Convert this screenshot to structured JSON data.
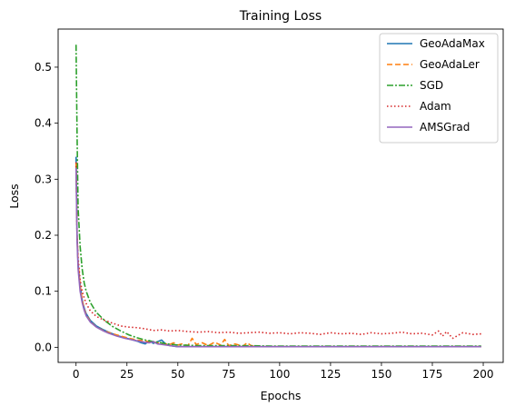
{
  "chart_data": {
    "type": "line",
    "title": "Training Loss",
    "xlabel": "Epochs",
    "ylabel": "Loss",
    "xlim": [
      -8.8,
      209.8
    ],
    "ylim": [
      -0.027,
      0.568
    ],
    "xticks": [
      0,
      25,
      50,
      75,
      100,
      125,
      150,
      175,
      200
    ],
    "xtick_labels": [
      "0",
      "25",
      "50",
      "75",
      "100",
      "125",
      "150",
      "175",
      "200"
    ],
    "yticks": [
      0.0,
      0.1,
      0.2,
      0.3,
      0.4,
      0.5
    ],
    "ytick_labels": [
      "0.0",
      "0.1",
      "0.2",
      "0.3",
      "0.4",
      "0.5"
    ],
    "grid": false,
    "legend_position": "top-right",
    "series": [
      {
        "name": "GeoAdaMax",
        "color": "#1f77b4",
        "dash": "solid",
        "x": [
          0,
          0.5,
          1,
          2,
          3,
          4,
          5,
          7,
          10,
          13,
          16,
          20,
          24,
          28,
          30,
          32,
          34,
          36,
          38,
          40,
          42,
          44,
          46,
          48,
          50,
          60,
          80,
          100,
          150,
          199
        ],
        "y": [
          0.34,
          0.2,
          0.15,
          0.11,
          0.085,
          0.07,
          0.06,
          0.048,
          0.038,
          0.032,
          0.027,
          0.021,
          0.017,
          0.013,
          0.011,
          0.008,
          0.006,
          0.012,
          0.007,
          0.01,
          0.013,
          0.006,
          0.003,
          0.002,
          0.001,
          0.001,
          0.001,
          0.001,
          0.001,
          0.001
        ]
      },
      {
        "name": "GeoAdaLer",
        "color": "#ff7f0e",
        "dash": "6,3",
        "x": [
          0,
          0.5,
          1,
          2,
          3,
          4,
          5,
          7,
          10,
          14,
          18,
          22,
          26,
          30,
          34,
          38,
          42,
          46,
          48,
          50,
          52,
          55,
          57,
          59,
          62,
          65,
          68,
          71,
          73,
          75,
          78,
          80,
          82,
          84,
          86,
          90,
          100,
          150,
          199
        ],
        "y": [
          0.33,
          0.2,
          0.15,
          0.11,
          0.085,
          0.068,
          0.058,
          0.046,
          0.036,
          0.029,
          0.024,
          0.02,
          0.016,
          0.013,
          0.011,
          0.009,
          0.007,
          0.005,
          0.008,
          0.004,
          0.006,
          0.003,
          0.016,
          0.005,
          0.008,
          0.003,
          0.009,
          0.004,
          0.014,
          0.003,
          0.006,
          0.004,
          0.002,
          0.008,
          0.003,
          0.001,
          0.001,
          0.001,
          0.001
        ]
      },
      {
        "name": "SGD",
        "color": "#2ca02c",
        "dash": "7,2,2,2",
        "x": [
          0,
          0.5,
          1,
          2,
          3,
          4,
          5,
          7,
          10,
          14,
          18,
          22,
          26,
          30,
          35,
          40,
          45,
          50,
          60,
          80,
          100,
          150,
          199
        ],
        "y": [
          0.54,
          0.38,
          0.25,
          0.18,
          0.14,
          0.115,
          0.1,
          0.08,
          0.062,
          0.048,
          0.037,
          0.029,
          0.022,
          0.017,
          0.012,
          0.009,
          0.006,
          0.004,
          0.003,
          0.003,
          0.002,
          0.002,
          0.002
        ]
      },
      {
        "name": "Adam",
        "color": "#d62728",
        "dash": "1.5,2.5",
        "x": [
          0,
          0.5,
          1,
          2,
          3,
          4,
          5,
          7,
          10,
          14,
          18,
          22,
          26,
          30,
          34,
          38,
          42,
          46,
          50,
          55,
          60,
          65,
          70,
          75,
          80,
          85,
          90,
          95,
          100,
          105,
          110,
          115,
          120,
          125,
          130,
          135,
          140,
          145,
          150,
          155,
          160,
          165,
          170,
          175,
          178,
          180,
          182,
          185,
          190,
          195,
          199
        ],
        "y": [
          0.33,
          0.2,
          0.16,
          0.12,
          0.1,
          0.088,
          0.078,
          0.065,
          0.055,
          0.048,
          0.043,
          0.038,
          0.036,
          0.035,
          0.033,
          0.03,
          0.031,
          0.029,
          0.03,
          0.028,
          0.027,
          0.028,
          0.026,
          0.027,
          0.025,
          0.026,
          0.027,
          0.025,
          0.026,
          0.024,
          0.026,
          0.025,
          0.023,
          0.026,
          0.024,
          0.025,
          0.023,
          0.026,
          0.024,
          0.025,
          0.027,
          0.024,
          0.025,
          0.022,
          0.029,
          0.02,
          0.028,
          0.016,
          0.026,
          0.023,
          0.024
        ]
      },
      {
        "name": "AMSGrad",
        "color": "#9467bd",
        "dash": "solid",
        "x": [
          0,
          0.5,
          1,
          2,
          3,
          4,
          5,
          7,
          10,
          13,
          16,
          20,
          24,
          28,
          32,
          36,
          38,
          40,
          42,
          44,
          46,
          48,
          50,
          60,
          80,
          100,
          150,
          199
        ],
        "y": [
          0.32,
          0.19,
          0.14,
          0.1,
          0.08,
          0.066,
          0.056,
          0.045,
          0.036,
          0.03,
          0.025,
          0.02,
          0.016,
          0.013,
          0.01,
          0.008,
          0.01,
          0.006,
          0.005,
          0.004,
          0.003,
          0.002,
          0.001,
          0.001,
          0.001,
          0.001,
          0.001,
          0.001
        ]
      }
    ]
  }
}
